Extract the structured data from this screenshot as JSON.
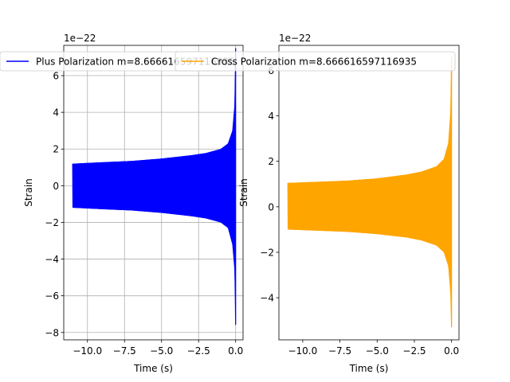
{
  "chart_data": [
    {
      "type": "line",
      "title": "",
      "xlabel": "Time (s)",
      "ylabel": "Strain",
      "offset_text": "1e−22",
      "xlim": [
        -11.6,
        0.5
      ],
      "ylim": [
        -8.4,
        7.65
      ],
      "x_ticks": [
        -10.0,
        -7.5,
        -5.0,
        -2.5,
        0.0
      ],
      "x_tick_labels": [
        "−10.0",
        "−7.5",
        "−5.0",
        "−2.5",
        "0.0"
      ],
      "y_ticks": [
        -8,
        -6,
        -4,
        -2,
        0,
        2,
        4,
        6
      ],
      "y_tick_labels": [
        "−8",
        "−6",
        "−4",
        "−2",
        "0",
        "2",
        "4",
        "6"
      ],
      "grid": true,
      "legend_position": "top-left",
      "series": [
        {
          "name": "Plus Polarization m=8.666616597116935",
          "color": "#0000ff",
          "envelope": {
            "t_start": -11.0,
            "t_end": 0.0,
            "points": [
              {
                "t": -11.0,
                "upper": 1.2,
                "lower": -1.2
              },
              {
                "t": -9.0,
                "upper": 1.28,
                "lower": -1.28
              },
              {
                "t": -7.0,
                "upper": 1.35,
                "lower": -1.35
              },
              {
                "t": -5.0,
                "upper": 1.48,
                "lower": -1.48
              },
              {
                "t": -3.0,
                "upper": 1.66,
                "lower": -1.66
              },
              {
                "t": -2.0,
                "upper": 1.78,
                "lower": -1.78
              },
              {
                "t": -1.0,
                "upper": 2.0,
                "lower": -2.0
              },
              {
                "t": -0.5,
                "upper": 2.3,
                "lower": -2.3
              },
              {
                "t": -0.2,
                "upper": 3.0,
                "lower": -3.2
              },
              {
                "t": -0.05,
                "upper": 4.4,
                "lower": -4.6
              },
              {
                "t": 0.0,
                "upper": 7.5,
                "lower": -7.6
              }
            ]
          }
        }
      ]
    },
    {
      "type": "line",
      "title": "",
      "xlabel": "Time (s)",
      "ylabel": "Strain",
      "offset_text": "1e−22",
      "xlim": [
        -11.6,
        0.5
      ],
      "ylim": [
        -5.85,
        7.1
      ],
      "x_ticks": [
        -10.0,
        -7.5,
        -5.0,
        -2.5,
        0.0
      ],
      "x_tick_labels": [
        "−10.0",
        "−7.5",
        "−5.0",
        "−2.5",
        "0.0"
      ],
      "y_ticks": [
        -4,
        -2,
        0,
        2,
        4,
        6
      ],
      "y_tick_labels": [
        "−4",
        "−2",
        "0",
        "2",
        "4",
        "6"
      ],
      "grid": false,
      "legend_position": "top-right",
      "series": [
        {
          "name": "Cross Polarization m=8.666616597116935",
          "color": "#ffa500",
          "envelope": {
            "t_start": -11.0,
            "t_end": 0.0,
            "points": [
              {
                "t": -11.0,
                "upper": 1.05,
                "lower": -1.0
              },
              {
                "t": -9.0,
                "upper": 1.1,
                "lower": -1.05
              },
              {
                "t": -7.0,
                "upper": 1.15,
                "lower": -1.1
              },
              {
                "t": -5.0,
                "upper": 1.25,
                "lower": -1.2
              },
              {
                "t": -3.0,
                "upper": 1.42,
                "lower": -1.35
              },
              {
                "t": -2.0,
                "upper": 1.55,
                "lower": -1.48
              },
              {
                "t": -1.0,
                "upper": 1.78,
                "lower": -1.7
              },
              {
                "t": -0.5,
                "upper": 2.1,
                "lower": -2.0
              },
              {
                "t": -0.2,
                "upper": 2.8,
                "lower": -2.6
              },
              {
                "t": -0.05,
                "upper": 4.2,
                "lower": -3.8
              },
              {
                "t": 0.0,
                "upper": 6.6,
                "lower": -5.3
              }
            ]
          }
        }
      ]
    }
  ]
}
